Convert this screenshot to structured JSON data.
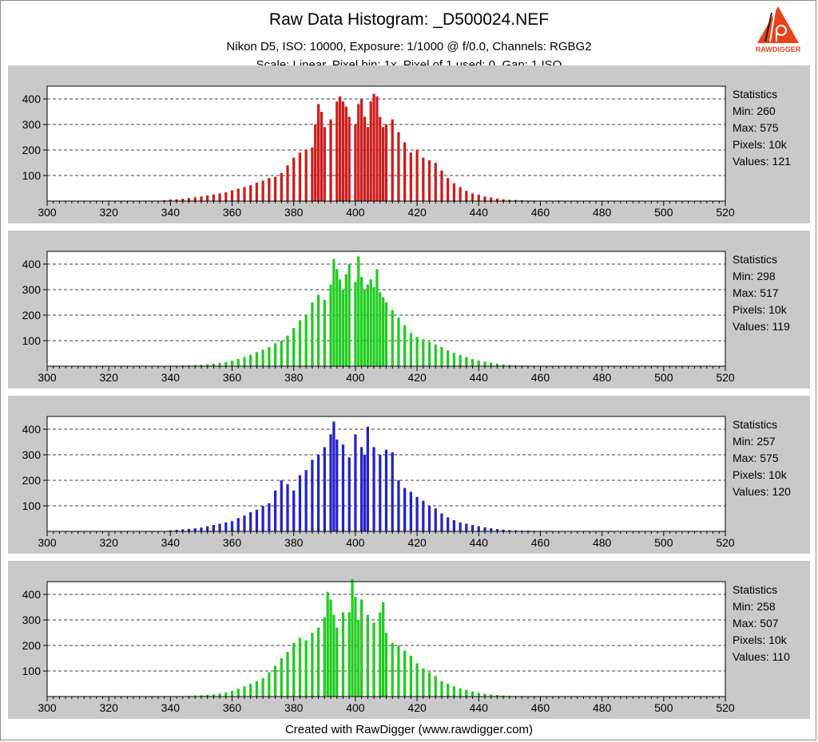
{
  "header": {
    "title": "Raw Data Histogram: _D500024.NEF",
    "subtitle": "Nikon D5, ISO: 10000, Exposure: 1/1000 @ f/0.0, Channels: RGBG2",
    "subtitle2": "Scale: Linear, Pixel bin: 1x, Pixel of 1 used: 0, Gap: 1 ISO"
  },
  "logo": {
    "text": "RAWDIGGER",
    "color": "#e8431b",
    "name": "rawdigger-logo"
  },
  "footer": "Created with RawDigger (www.rawdigger.com)",
  "chart_data": [
    {
      "type": "bar",
      "channel": "R",
      "color": "#cc1d1d",
      "xlim": [
        300,
        520
      ],
      "ylim": [
        0,
        450
      ],
      "xticks": [
        300,
        320,
        340,
        360,
        380,
        400,
        420,
        440,
        460,
        480,
        500,
        520
      ],
      "yticks": [
        100,
        200,
        300,
        400
      ],
      "grid": true,
      "stats": {
        "heading": "Statistics",
        "min": "Min: 260",
        "max": "Max: 575",
        "pixels": "Pixels: 10k",
        "values": "Values: 121"
      },
      "x": [
        338,
        340,
        342,
        344,
        346,
        348,
        350,
        352,
        354,
        356,
        358,
        360,
        362,
        364,
        366,
        368,
        370,
        372,
        374,
        376,
        378,
        380,
        382,
        384,
        386,
        387,
        388,
        389,
        390,
        392,
        394,
        395,
        396,
        397,
        398,
        400,
        401,
        402,
        403,
        404,
        405,
        406,
        407,
        408,
        409,
        410,
        412,
        414,
        416,
        418,
        420,
        422,
        424,
        426,
        428,
        430,
        432,
        434,
        436,
        438,
        440,
        442,
        444,
        446,
        448,
        450,
        452,
        454,
        456,
        458,
        460,
        462,
        464,
        466,
        468,
        470,
        472,
        474,
        476,
        478,
        480
      ],
      "y": [
        3,
        6,
        7,
        9,
        12,
        15,
        18,
        22,
        26,
        30,
        34,
        42,
        48,
        55,
        62,
        72,
        80,
        90,
        95,
        110,
        140,
        170,
        190,
        200,
        210,
        300,
        380,
        350,
        290,
        320,
        390,
        410,
        390,
        370,
        330,
        300,
        380,
        400,
        330,
        290,
        390,
        420,
        410,
        330,
        290,
        300,
        320,
        270,
        230,
        190,
        200,
        170,
        160,
        150,
        120,
        90,
        70,
        55,
        40,
        30,
        25,
        18,
        14,
        10,
        7,
        5,
        4,
        3,
        2,
        2,
        1,
        1,
        1,
        2,
        1,
        1,
        0,
        0,
        0,
        0,
        0
      ]
    },
    {
      "type": "bar",
      "channel": "G",
      "color": "#22cc22",
      "xlim": [
        300,
        520
      ],
      "ylim": [
        0,
        450
      ],
      "xticks": [
        300,
        320,
        340,
        360,
        380,
        400,
        420,
        440,
        460,
        480,
        500,
        520
      ],
      "yticks": [
        100,
        200,
        300,
        400
      ],
      "grid": true,
      "stats": {
        "heading": "Statistics",
        "min": "Min: 298",
        "max": "Max: 517",
        "pixels": "Pixels: 10k",
        "values": "Values: 119"
      },
      "x": [
        342,
        344,
        346,
        348,
        350,
        352,
        354,
        356,
        358,
        360,
        362,
        364,
        366,
        368,
        370,
        372,
        374,
        376,
        378,
        380,
        382,
        384,
        386,
        388,
        390,
        392,
        393,
        394,
        395,
        396,
        397,
        398,
        400,
        401,
        402,
        403,
        404,
        405,
        406,
        407,
        408,
        409,
        410,
        412,
        414,
        416,
        418,
        420,
        422,
        424,
        426,
        428,
        430,
        432,
        434,
        436,
        438,
        440,
        442,
        444,
        446,
        448,
        450,
        452,
        454,
        456,
        458,
        460,
        462,
        464,
        466,
        468,
        470
      ],
      "y": [
        2,
        3,
        4,
        5,
        6,
        8,
        10,
        13,
        17,
        22,
        28,
        35,
        45,
        55,
        65,
        75,
        90,
        100,
        120,
        150,
        180,
        200,
        250,
        280,
        260,
        320,
        420,
        380,
        340,
        300,
        360,
        400,
        330,
        430,
        350,
        300,
        320,
        340,
        310,
        380,
        290,
        270,
        250,
        220,
        190,
        160,
        130,
        115,
        105,
        95,
        85,
        75,
        62,
        52,
        44,
        36,
        28,
        22,
        18,
        14,
        10,
        7,
        5,
        4,
        3,
        2,
        2,
        1,
        1,
        1,
        0,
        0,
        0
      ]
    },
    {
      "type": "bar",
      "channel": "B",
      "color": "#2424c8",
      "xlim": [
        300,
        520
      ],
      "ylim": [
        0,
        450
      ],
      "xticks": [
        300,
        320,
        340,
        360,
        380,
        400,
        420,
        440,
        460,
        480,
        500,
        520
      ],
      "yticks": [
        100,
        200,
        300,
        400
      ],
      "grid": true,
      "stats": {
        "heading": "Statistics",
        "min": "Min: 257",
        "max": "Max: 575",
        "pixels": "Pixels: 10k",
        "values": "Values: 120"
      },
      "x": [
        340,
        342,
        344,
        346,
        348,
        350,
        352,
        354,
        356,
        358,
        360,
        362,
        364,
        366,
        368,
        370,
        372,
        374,
        376,
        378,
        380,
        382,
        384,
        386,
        388,
        390,
        392,
        393,
        394,
        396,
        398,
        400,
        402,
        403,
        404,
        406,
        408,
        410,
        412,
        414,
        416,
        418,
        420,
        422,
        424,
        426,
        428,
        430,
        432,
        434,
        436,
        438,
        440,
        442,
        444,
        446,
        448,
        450,
        452,
        454,
        456,
        458,
        460,
        462,
        464,
        466,
        468,
        470,
        472,
        474
      ],
      "y": [
        4,
        6,
        8,
        10,
        12,
        15,
        20,
        25,
        30,
        35,
        40,
        52,
        62,
        75,
        85,
        100,
        110,
        160,
        200,
        185,
        160,
        220,
        240,
        280,
        300,
        330,
        380,
        430,
        360,
        340,
        290,
        380,
        330,
        300,
        410,
        330,
        300,
        320,
        310,
        200,
        170,
        155,
        135,
        120,
        100,
        90,
        70,
        55,
        44,
        35,
        30,
        25,
        20,
        16,
        12,
        9,
        7,
        5,
        4,
        3,
        3,
        2,
        2,
        1,
        1,
        1,
        0,
        0,
        0,
        0
      ]
    },
    {
      "type": "bar",
      "channel": "G2",
      "color": "#22cc22",
      "xlim": [
        300,
        520
      ],
      "ylim": [
        0,
        450
      ],
      "xticks": [
        300,
        320,
        340,
        360,
        380,
        400,
        420,
        440,
        460,
        480,
        500,
        520
      ],
      "yticks": [
        100,
        200,
        300,
        400
      ],
      "grid": true,
      "stats": {
        "heading": "Statistics",
        "min": "Min: 258",
        "max": "Max: 507",
        "pixels": "Pixels: 10k",
        "values": "Values: 110"
      },
      "x": [
        346,
        348,
        350,
        352,
        354,
        356,
        358,
        360,
        362,
        364,
        366,
        368,
        370,
        372,
        374,
        376,
        378,
        380,
        382,
        384,
        386,
        388,
        390,
        391,
        392,
        393,
        394,
        396,
        398,
        399,
        400,
        401,
        402,
        404,
        406,
        408,
        409,
        410,
        412,
        414,
        416,
        418,
        420,
        422,
        424,
        426,
        428,
        430,
        432,
        434,
        436,
        438,
        440,
        442,
        444,
        446,
        448,
        450,
        452,
        454,
        456,
        458,
        460
      ],
      "y": [
        3,
        4,
        5,
        7,
        9,
        12,
        16,
        22,
        30,
        40,
        50,
        60,
        72,
        95,
        120,
        150,
        175,
        210,
        230,
        220,
        250,
        270,
        310,
        410,
        380,
        320,
        270,
        330,
        330,
        460,
        390,
        300,
        380,
        320,
        290,
        330,
        370,
        250,
        210,
        200,
        180,
        160,
        130,
        110,
        95,
        80,
        60,
        50,
        40,
        32,
        26,
        20,
        15,
        11,
        8,
        6,
        4,
        3,
        2,
        2,
        1,
        1,
        0
      ]
    }
  ]
}
